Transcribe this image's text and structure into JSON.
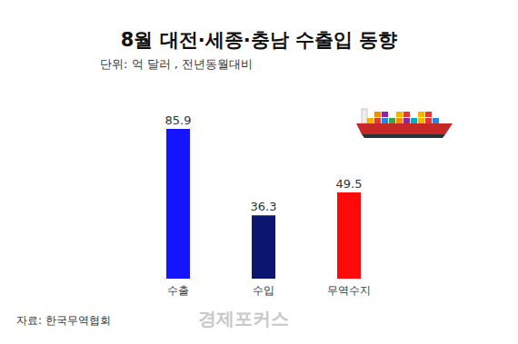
{
  "chart_data": {
    "type": "bar",
    "title": "8월 대전·세종·충남 수출입 동향",
    "subtitle": "단위: 억 달러 , 전년동월대비",
    "categories": [
      "수출",
      "수입",
      "무역수지"
    ],
    "values": [
      85.9,
      36.3,
      49.5
    ],
    "colors": [
      "#1414ff",
      "#0c1670",
      "#ff0a0a"
    ],
    "ylim": [
      0,
      100
    ],
    "grid": false,
    "data_labels": true,
    "tick_labels": "x",
    "source": "자료: 한국무역협회",
    "credit": "경제포커스"
  }
}
